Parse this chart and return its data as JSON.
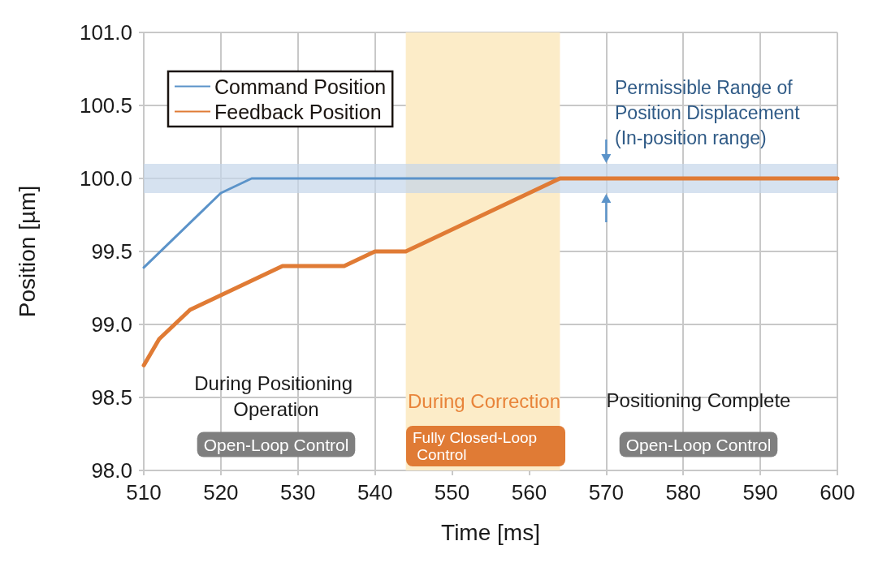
{
  "chart_data": {
    "type": "line",
    "xlabel": "Time [ms]",
    "ylabel": "Position [µm]",
    "xlim": [
      510,
      600
    ],
    "xticks": [
      510,
      520,
      530,
      540,
      550,
      560,
      570,
      580,
      590,
      600
    ],
    "ylim": [
      98,
      101
    ],
    "yticks": [
      {
        "value": 98,
        "label": "98.0"
      },
      98.5,
      {
        "value": 99,
        "label": "99.0"
      },
      99.5,
      {
        "value": 100,
        "label": "100.0"
      },
      100.5,
      {
        "value": 101,
        "label": "101.0"
      }
    ],
    "series": [
      {
        "name": "Command Position",
        "color": "#5b93c9",
        "x": [
          510,
          520,
          524,
          564
        ],
        "values": [
          99.39,
          99.9,
          100,
          100
        ]
      },
      {
        "name": "Feedback Position",
        "color": "#e07b35",
        "x": [
          510,
          512,
          516,
          520,
          528,
          536,
          540,
          544,
          564,
          600
        ],
        "values": [
          98.72,
          98.9,
          99.1,
          99.2,
          99.4,
          99.4,
          99.5,
          99.5,
          100,
          100
        ]
      }
    ],
    "bands": [
      {
        "axis": "x",
        "from": 544,
        "to": 564,
        "color": "#fcecc8"
      },
      {
        "axis": "y",
        "from": 99.9,
        "to": 100.1,
        "color": "#c5d5ea"
      }
    ],
    "annotations": [
      "During Positioning Operation",
      "Open-Loop Control",
      "During Correction",
      "Fully Closed-Loop Control",
      "Positioning Complete",
      "Open-Loop Control",
      "Permissible Range of Position Displacement (In-position range)"
    ],
    "grid": true,
    "legend": "top left",
    "marker": "none",
    "line_style": "solid"
  }
}
